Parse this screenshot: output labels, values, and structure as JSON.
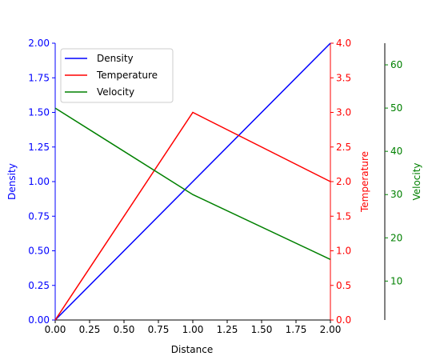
{
  "chart_data": {
    "type": "line",
    "xlabel": "Distance",
    "x": [
      0,
      1,
      2
    ],
    "xlim": [
      0,
      2
    ],
    "xticks": [
      "0.00",
      "0.25",
      "0.50",
      "0.75",
      "1.00",
      "1.25",
      "1.50",
      "1.75",
      "2.00"
    ],
    "series": [
      {
        "name": "Density",
        "color": "#0000ff",
        "axis": "left",
        "values": [
          0,
          1,
          2
        ],
        "ylabel": "Density",
        "ylim": [
          0,
          2
        ],
        "ticks": [
          "0.00",
          "0.25",
          "0.50",
          "0.75",
          "1.00",
          "1.25",
          "1.50",
          "1.75",
          "2.00"
        ]
      },
      {
        "name": "Temperature",
        "color": "#ff0000",
        "axis": "right",
        "values": [
          0,
          3,
          2
        ],
        "ylabel": "Temperature",
        "ylim": [
          0,
          4
        ],
        "ticks": [
          "0.0",
          "0.5",
          "1.0",
          "1.5",
          "2.0",
          "2.5",
          "3.0",
          "3.5",
          "4.0"
        ]
      },
      {
        "name": "Velocity",
        "color": "#008000",
        "axis": "right-offset",
        "values": [
          50,
          30,
          15
        ],
        "ylabel": "Velocity",
        "ylim": [
          1,
          65
        ],
        "ticks": [
          "10",
          "20",
          "30",
          "40",
          "50",
          "60"
        ]
      }
    ],
    "legend_position": "top-left",
    "grid": false
  }
}
